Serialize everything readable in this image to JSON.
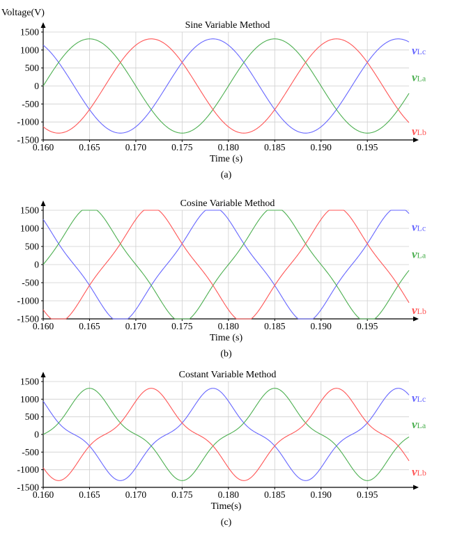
{
  "chart_data": [
    {
      "type": "line",
      "title": "Sine Variable Method",
      "ylabel": "Voltage(V)",
      "xlabel": "Time (s)",
      "caption": "(a)",
      "xlim": [
        0.16,
        0.1995
      ],
      "ylim": [
        -1500,
        1500
      ],
      "xticks": [
        "0.160",
        "0.165",
        "0.170",
        "0.175",
        "0.180",
        "0.185",
        "0.190",
        "0.195"
      ],
      "yticks": [
        "1500",
        "1000",
        "500",
        "0",
        "-500",
        "-1000",
        "-1500"
      ],
      "grid": true,
      "series": [
        {
          "name": "vLc",
          "color": "#6666ff",
          "amplitude": 1310,
          "phase_deg": 120,
          "label_value": 1000
        },
        {
          "name": "vLa",
          "color": "#4caf50",
          "amplitude": 1310,
          "phase_deg": 0,
          "label_value": 250
        },
        {
          "name": "vLb",
          "color": "#ff5555",
          "amplitude": 1310,
          "phase_deg": -120,
          "label_value": -1250
        }
      ],
      "frequency_hz": 50,
      "shape_factor": 0
    },
    {
      "type": "line",
      "title": "Cosine Variable Method",
      "ylabel": "",
      "xlabel": "Time (s)",
      "caption": "(b)",
      "xlim": [
        0.16,
        0.1995
      ],
      "ylim": [
        -1500,
        1500
      ],
      "xticks": [
        "0.160",
        "0.165",
        "0.170",
        "0.175",
        "0.180",
        "0.185",
        "0.190",
        "0.195"
      ],
      "yticks": [
        "1500",
        "1000",
        "500",
        "0",
        "-500",
        "-1000",
        "-1500"
      ],
      "grid": true,
      "series": [
        {
          "name": "vLc",
          "color": "#6666ff",
          "amplitude": 1440,
          "phase_deg": 120,
          "label_value": 1050
        },
        {
          "name": "vLa",
          "color": "#4caf50",
          "amplitude": 1440,
          "phase_deg": 0,
          "label_value": 300
        },
        {
          "name": "vLb",
          "color": "#ff5555",
          "amplitude": 1440,
          "phase_deg": -120,
          "label_value": -1250
        }
      ],
      "frequency_hz": 50,
      "shape_factor": 0.1
    },
    {
      "type": "line",
      "title": "Costant Variable Method",
      "ylabel": "",
      "xlabel": "Time(s)",
      "caption": "(c)",
      "xlim": [
        0.16,
        0.1995
      ],
      "ylim": [
        -1500,
        1500
      ],
      "xticks": [
        "0.160",
        "0.165",
        "0.170",
        "0.175",
        "0.180",
        "0.185",
        "0.190",
        "0.195"
      ],
      "yticks": [
        "1500",
        "1000",
        "500",
        "0",
        "-500",
        "-1000",
        "-1500"
      ],
      "grid": true,
      "series": [
        {
          "name": "vLc",
          "color": "#6666ff",
          "amplitude": 1090,
          "phase_deg": 120,
          "label_value": 1050
        },
        {
          "name": "vLa",
          "color": "#4caf50",
          "amplitude": 1090,
          "phase_deg": 0,
          "label_value": 300
        },
        {
          "name": "vLb",
          "color": "#ff5555",
          "amplitude": 1090,
          "phase_deg": -120,
          "label_value": -1050
        }
      ],
      "frequency_hz": 50,
      "shape_factor": 0.2
    }
  ]
}
